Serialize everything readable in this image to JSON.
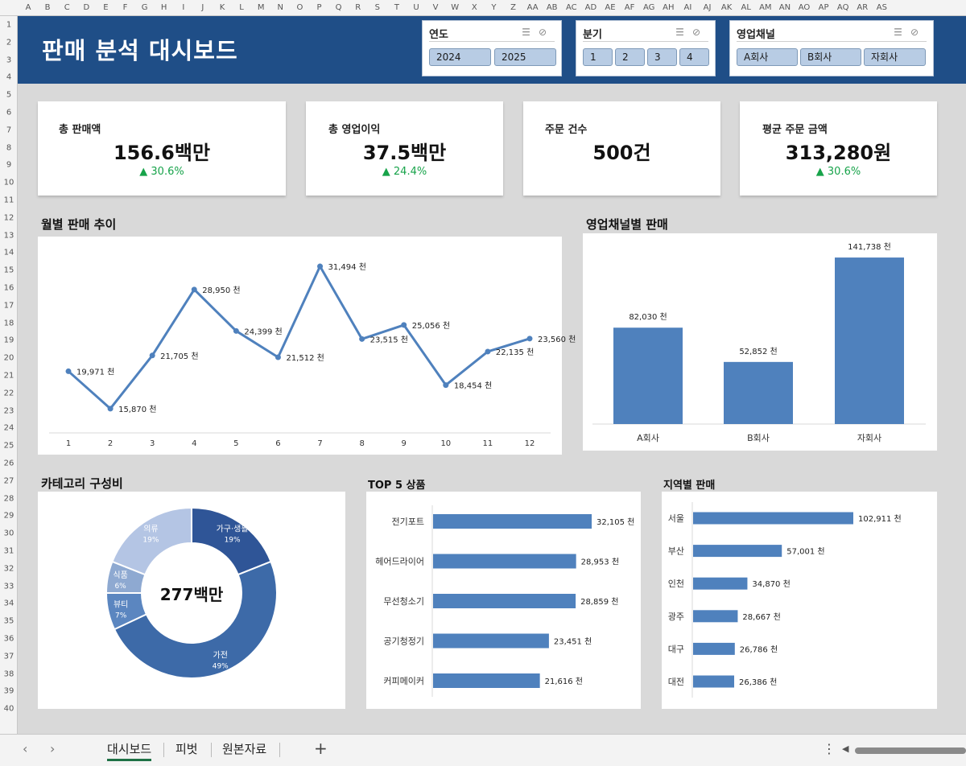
{
  "sheet": {
    "columns": [
      "A",
      "B",
      "C",
      "D",
      "E",
      "F",
      "G",
      "H",
      "I",
      "J",
      "K",
      "L",
      "M",
      "N",
      "O",
      "P",
      "Q",
      "R",
      "S",
      "T",
      "U",
      "V",
      "W",
      "X",
      "Y",
      "Z",
      "AA",
      "AB",
      "AC",
      "AD",
      "AE",
      "AF",
      "AG",
      "AH",
      "AI",
      "AJ",
      "AK",
      "AL",
      "AM",
      "AN",
      "AO",
      "AP",
      "AQ",
      "AR",
      "AS"
    ],
    "rows": [
      "1",
      "2",
      "3",
      "4",
      "5",
      "6",
      "7",
      "8",
      "9",
      "10",
      "11",
      "12",
      "13",
      "14",
      "15",
      "16",
      "17",
      "18",
      "19",
      "20",
      "21",
      "22",
      "23",
      "24",
      "25",
      "26",
      "27",
      "28",
      "29",
      "30",
      "31",
      "32",
      "33",
      "34",
      "35",
      "36",
      "37",
      "38",
      "39",
      "40"
    ]
  },
  "dashboard": {
    "title": "판매 분석 대시보드"
  },
  "slicers": {
    "year": {
      "title": "연도",
      "options": [
        "2024",
        "2025"
      ]
    },
    "quarter": {
      "title": "분기",
      "options": [
        "1",
        "2",
        "3",
        "4"
      ]
    },
    "channel": {
      "title": "영업채널",
      "options": [
        "A회사",
        "B회사",
        "자회사"
      ]
    }
  },
  "kpis": [
    {
      "label": "총 판매액",
      "value": "156.6백만",
      "change": "▲ 30.6%"
    },
    {
      "label": "총 영업이익",
      "value": "37.5백만",
      "change": "▲ 24.4%"
    },
    {
      "label": "주문 건수",
      "value": "500건",
      "change": ""
    },
    {
      "label": "평균 주문 금액",
      "value": "313,280원",
      "change": "▲ 30.6%"
    }
  ],
  "sections": {
    "monthly": "월별 판매 추이",
    "channel": "영업채널별 판매",
    "category": "카테고리 구성비",
    "top5": "TOP 5 상품",
    "region": "지역별 판매"
  },
  "colors": {
    "accent": "#4f81bd",
    "banner": "#1f4e87",
    "positive": "#17a34a"
  },
  "chart_data": [
    {
      "type": "line",
      "title": "월별 판매 추이",
      "unit_suffix": " 천",
      "x": [
        "1",
        "2",
        "3",
        "4",
        "5",
        "6",
        "7",
        "8",
        "9",
        "10",
        "11",
        "12"
      ],
      "values": [
        19971,
        15870,
        21705,
        28950,
        24399,
        21512,
        31494,
        23515,
        25056,
        18454,
        22135,
        23560
      ],
      "labels": [
        "19,971 천",
        "15,870 천",
        "21,705 천",
        "28,950 천",
        "24,399 천",
        "21,512 천",
        "31,494 천",
        "23,515 천",
        "25,056 천",
        "18,454 천",
        "22,135 천",
        "23,560 천"
      ],
      "grid": false
    },
    {
      "type": "bar",
      "title": "영업채널별 판매",
      "categories": [
        "A회사",
        "B회사",
        "자회사"
      ],
      "values": [
        82030,
        52852,
        141738
      ],
      "labels": [
        "82,030 천",
        "52,852 천",
        "141,738 천"
      ]
    },
    {
      "type": "pie",
      "title": "카테고리 구성비",
      "center_label": "277백만",
      "slices": [
        {
          "name": "가구·생활",
          "pct": 19,
          "label": "19%",
          "color": "#2f5597"
        },
        {
          "name": "가전",
          "pct": 49,
          "label": "49%",
          "color": "#3d6aa8"
        },
        {
          "name": "뷰티",
          "pct": 7,
          "label": "7%",
          "color": "#5b86c0"
        },
        {
          "name": "식품",
          "pct": 6,
          "label": "6%",
          "color": "#8ea9d1"
        },
        {
          "name": "의류",
          "pct": 19,
          "label": "19%",
          "color": "#b4c5e4"
        }
      ]
    },
    {
      "type": "bar",
      "orientation": "horizontal",
      "title": "TOP 5 상품",
      "categories": [
        "전기포트",
        "헤어드라이어",
        "무선청소기",
        "공기청정기",
        "커피메이커"
      ],
      "values": [
        32105,
        28953,
        28859,
        23451,
        21616
      ],
      "labels": [
        "32,105 천",
        "28,953 천",
        "28,859 천",
        "23,451 천",
        "21,616 천"
      ]
    },
    {
      "type": "bar",
      "orientation": "horizontal",
      "title": "지역별 판매",
      "categories": [
        "서울",
        "부산",
        "인천",
        "광주",
        "대구",
        "대전"
      ],
      "values": [
        102911,
        57001,
        34870,
        28667,
        26786,
        26386
      ],
      "labels": [
        "102,911 천",
        "57,001 천",
        "34,870 천",
        "28,667 천",
        "26,786 천",
        "26,386 천"
      ]
    }
  ],
  "tabs": {
    "sheets": [
      "대시보드",
      "피벗",
      "원본자료"
    ],
    "active": "대시보드",
    "add_label": "+",
    "prev_icon": "chevron-left-icon",
    "next_icon": "chevron-right-icon",
    "more_icon": "more-vertical-icon"
  }
}
